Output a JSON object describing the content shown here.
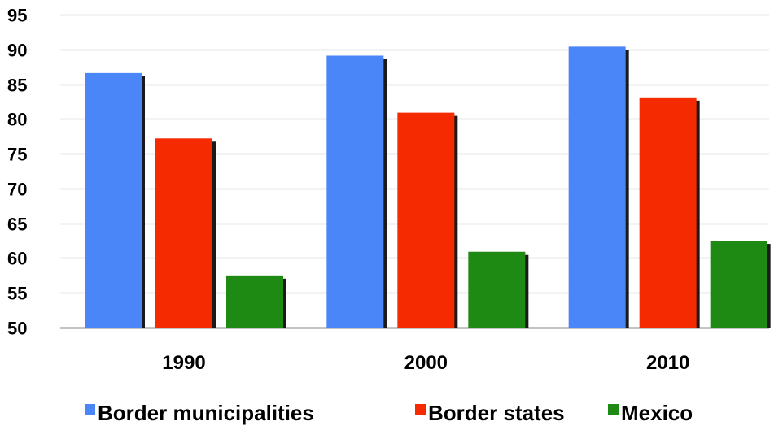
{
  "chart_data": {
    "type": "bar",
    "title": "",
    "xlabel": "",
    "ylabel": "",
    "categories": [
      "1990",
      "2000",
      "2010"
    ],
    "series": [
      {
        "name": "Border municipalities",
        "values": [
          86.6,
          89.1,
          90.4
        ],
        "color": "#4a86f7"
      },
      {
        "name": "Border states",
        "values": [
          77.2,
          80.9,
          83.1
        ],
        "color": "#f52a00"
      },
      {
        "name": "Mexico",
        "values": [
          57.5,
          60.9,
          62.5
        ],
        "color": "#1e8a14"
      }
    ],
    "ylim": [
      50,
      95
    ],
    "yticks": [
      "50",
      "55",
      "60",
      "65",
      "70",
      "75",
      "80",
      "85",
      "90",
      "95"
    ],
    "grid": true,
    "legend_position": "bottom"
  }
}
